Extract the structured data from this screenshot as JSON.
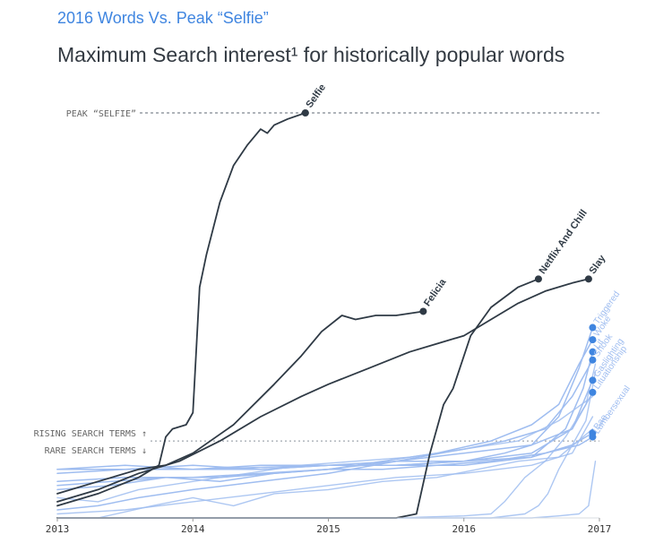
{
  "header": {
    "kicker": "2016 Words Vs. Peak “Selfie”",
    "title": "Maximum Search interest¹ for historically popular words"
  },
  "colors": {
    "dark": "#2f3a45",
    "blue": "#3f85e0",
    "light_blue": "#9fbdf0",
    "axis_text": "#333333",
    "reference_text": "#666666"
  },
  "chart_data": {
    "type": "line",
    "xlim": [
      2013,
      2017
    ],
    "ylim": [
      0,
      100
    ],
    "x_ticks": [
      {
        "value": 2013,
        "label": "2013"
      },
      {
        "value": 2014,
        "label": "2014"
      },
      {
        "value": 2015,
        "label": "2015"
      },
      {
        "value": 2016,
        "label": "2016"
      },
      {
        "value": 2017,
        "label": "2017"
      }
    ],
    "reference_lines": [
      {
        "name": "peak-selfie",
        "y": 100,
        "label": "PEAK “SELFIE”"
      },
      {
        "name": "rising-rare",
        "y": 19,
        "label_top": "RISING SEARCH TERMS ↑",
        "label_bottom": "RARE SEARCH TERMS ↓"
      }
    ],
    "series": [
      {
        "name": "Selfie",
        "style": "dark",
        "points": [
          [
            2013.0,
            3
          ],
          [
            2013.3,
            6
          ],
          [
            2013.6,
            10
          ],
          [
            2013.75,
            13
          ],
          [
            2013.8,
            20
          ],
          [
            2013.85,
            22
          ],
          [
            2013.95,
            23
          ],
          [
            2014.0,
            26
          ],
          [
            2014.05,
            57
          ],
          [
            2014.1,
            65
          ],
          [
            2014.2,
            78
          ],
          [
            2014.3,
            87
          ],
          [
            2014.4,
            92
          ],
          [
            2014.5,
            96
          ],
          [
            2014.55,
            95
          ],
          [
            2014.6,
            97
          ],
          [
            2014.7,
            98.5
          ],
          [
            2014.83,
            100
          ]
        ]
      },
      {
        "name": "Felicia",
        "style": "dark",
        "points": [
          [
            2013.0,
            6
          ],
          [
            2013.3,
            9
          ],
          [
            2013.6,
            12
          ],
          [
            2013.8,
            13
          ],
          [
            2014.0,
            16
          ],
          [
            2014.3,
            23
          ],
          [
            2014.6,
            33
          ],
          [
            2014.8,
            40
          ],
          [
            2014.95,
            46
          ],
          [
            2015.1,
            50
          ],
          [
            2015.2,
            49
          ],
          [
            2015.35,
            50
          ],
          [
            2015.5,
            50
          ],
          [
            2015.7,
            51
          ]
        ]
      },
      {
        "name": "Netflix And Chill",
        "style": "dark",
        "points": [
          [
            2013.0,
            0
          ],
          [
            2015.5,
            0
          ],
          [
            2015.65,
            1
          ],
          [
            2015.75,
            16
          ],
          [
            2015.85,
            28
          ],
          [
            2015.92,
            32
          ],
          [
            2016.05,
            45
          ],
          [
            2016.2,
            52
          ],
          [
            2016.4,
            57
          ],
          [
            2016.55,
            59
          ]
        ]
      },
      {
        "name": "Slay",
        "style": "dark",
        "points": [
          [
            2013.0,
            4
          ],
          [
            2013.3,
            7
          ],
          [
            2013.6,
            11
          ],
          [
            2013.9,
            14
          ],
          [
            2014.2,
            19
          ],
          [
            2014.5,
            25
          ],
          [
            2014.8,
            30
          ],
          [
            2015.0,
            33
          ],
          [
            2015.3,
            37
          ],
          [
            2015.6,
            41
          ],
          [
            2015.8,
            43
          ],
          [
            2016.0,
            45
          ],
          [
            2016.2,
            49
          ],
          [
            2016.4,
            53
          ],
          [
            2016.6,
            56
          ],
          [
            2016.8,
            58
          ],
          [
            2016.92,
            59
          ]
        ]
      },
      {
        "name": "Triggered",
        "style": "blue",
        "points": [
          [
            2013.0,
            12
          ],
          [
            2013.5,
            13
          ],
          [
            2014.0,
            12
          ],
          [
            2014.5,
            13
          ],
          [
            2015.0,
            13
          ],
          [
            2015.5,
            14
          ],
          [
            2016.0,
            14
          ],
          [
            2016.3,
            16
          ],
          [
            2016.5,
            18
          ],
          [
            2016.7,
            25
          ],
          [
            2016.85,
            37
          ],
          [
            2016.95,
            47
          ]
        ]
      },
      {
        "name": "Woke",
        "style": "blue",
        "points": [
          [
            2013.0,
            7
          ],
          [
            2013.4,
            8
          ],
          [
            2013.8,
            10
          ],
          [
            2014.2,
            9
          ],
          [
            2014.6,
            11
          ],
          [
            2015.0,
            12
          ],
          [
            2015.4,
            14
          ],
          [
            2015.8,
            16
          ],
          [
            2016.2,
            19
          ],
          [
            2016.5,
            23
          ],
          [
            2016.7,
            28
          ],
          [
            2016.85,
            38
          ],
          [
            2016.95,
            44
          ]
        ]
      },
      {
        "name": "Lit",
        "style": "blue",
        "points": [
          [
            2013.0,
            12
          ],
          [
            2014.0,
            12
          ],
          [
            2015.0,
            13
          ],
          [
            2015.5,
            13
          ],
          [
            2016.0,
            13
          ],
          [
            2016.5,
            15
          ],
          [
            2016.75,
            22
          ],
          [
            2016.88,
            32
          ],
          [
            2016.95,
            41
          ]
        ]
      },
      {
        "name": "Shook",
        "style": "blue",
        "points": [
          [
            2013.0,
            9
          ],
          [
            2013.5,
            10
          ],
          [
            2014.0,
            10
          ],
          [
            2014.5,
            11
          ],
          [
            2015.0,
            12
          ],
          [
            2015.5,
            14
          ],
          [
            2016.0,
            17
          ],
          [
            2016.3,
            19
          ],
          [
            2016.6,
            22
          ],
          [
            2016.8,
            30
          ],
          [
            2016.95,
            39
          ]
        ]
      },
      {
        "name": "Gaslighting",
        "style": "blue",
        "points": [
          [
            2013.0,
            12
          ],
          [
            2013.5,
            12
          ],
          [
            2014.0,
            13
          ],
          [
            2014.5,
            12
          ],
          [
            2015.0,
            13
          ],
          [
            2015.5,
            13
          ],
          [
            2016.0,
            14
          ],
          [
            2016.5,
            16
          ],
          [
            2016.8,
            22
          ],
          [
            2016.95,
            34
          ]
        ]
      },
      {
        "name": "Lituationship",
        "style": "blue",
        "points": [
          [
            2013.0,
            2
          ],
          [
            2013.3,
            3
          ],
          [
            2013.6,
            5
          ],
          [
            2014.0,
            7
          ],
          [
            2014.5,
            9
          ],
          [
            2015.0,
            11
          ],
          [
            2015.5,
            14
          ],
          [
            2016.0,
            16
          ],
          [
            2016.5,
            18
          ],
          [
            2016.8,
            22
          ],
          [
            2016.95,
            31
          ]
        ]
      },
      {
        "name": "Bae",
        "style": "blue",
        "points": [
          [
            2013.0,
            11
          ],
          [
            2013.5,
            12
          ],
          [
            2014.0,
            12
          ],
          [
            2014.5,
            12
          ],
          [
            2015.0,
            13
          ],
          [
            2015.5,
            13
          ],
          [
            2016.0,
            14
          ],
          [
            2016.5,
            15
          ],
          [
            2016.8,
            18
          ],
          [
            2016.95,
            21
          ]
        ]
      },
      {
        "name": "Lumbersexual",
        "style": "blue",
        "points": [
          [
            2013.0,
            8
          ],
          [
            2013.4,
            9
          ],
          [
            2013.8,
            10
          ],
          [
            2014.2,
            10
          ],
          [
            2014.6,
            11
          ],
          [
            2015.0,
            12
          ],
          [
            2015.4,
            12
          ],
          [
            2015.8,
            13
          ],
          [
            2016.2,
            14
          ],
          [
            2016.6,
            16
          ],
          [
            2016.85,
            18
          ],
          [
            2016.95,
            20
          ]
        ]
      },
      {
        "name": "trend-a",
        "style": "light",
        "points": [
          [
            2013.0,
            5
          ],
          [
            2013.3,
            4
          ],
          [
            2013.6,
            7
          ],
          [
            2014.0,
            9
          ],
          [
            2014.4,
            11
          ],
          [
            2014.8,
            13
          ],
          [
            2015.2,
            14
          ],
          [
            2015.6,
            15
          ],
          [
            2016.0,
            17
          ],
          [
            2016.4,
            19
          ],
          [
            2016.7,
            24
          ],
          [
            2016.95,
            30
          ]
        ]
      },
      {
        "name": "trend-b",
        "style": "light",
        "points": [
          [
            2013.0,
            0
          ],
          [
            2014.0,
            0
          ],
          [
            2015.0,
            0
          ],
          [
            2015.5,
            0
          ],
          [
            2016.0,
            0.5
          ],
          [
            2016.2,
            1
          ],
          [
            2016.3,
            4
          ],
          [
            2016.45,
            10
          ],
          [
            2016.6,
            14
          ],
          [
            2016.75,
            20
          ],
          [
            2016.9,
            28
          ],
          [
            2016.97,
            38
          ]
        ]
      },
      {
        "name": "trend-c",
        "style": "light",
        "points": [
          [
            2013.0,
            0
          ],
          [
            2015.8,
            0
          ],
          [
            2016.2,
            0
          ],
          [
            2016.45,
            1
          ],
          [
            2016.55,
            3
          ],
          [
            2016.62,
            6
          ],
          [
            2016.7,
            12
          ],
          [
            2016.8,
            18
          ],
          [
            2016.9,
            24
          ],
          [
            2016.97,
            36
          ]
        ]
      },
      {
        "name": "trend-d",
        "style": "light",
        "points": [
          [
            2013.3,
            0
          ],
          [
            2013.7,
            3
          ],
          [
            2014.0,
            5
          ],
          [
            2014.3,
            3
          ],
          [
            2014.6,
            6
          ],
          [
            2015.0,
            7
          ],
          [
            2015.4,
            9
          ],
          [
            2015.8,
            10
          ],
          [
            2016.1,
            12
          ],
          [
            2016.4,
            14
          ],
          [
            2016.7,
            15
          ],
          [
            2016.95,
            22
          ]
        ]
      },
      {
        "name": "trend-e",
        "style": "light",
        "points": [
          [
            2013.0,
            0
          ],
          [
            2016.0,
            0
          ],
          [
            2016.5,
            0
          ],
          [
            2016.7,
            0.5
          ],
          [
            2016.85,
            1
          ],
          [
            2016.92,
            3
          ],
          [
            2016.97,
            14
          ]
        ]
      },
      {
        "name": "trend-f",
        "style": "light",
        "points": [
          [
            2013.0,
            1
          ],
          [
            2013.5,
            2
          ],
          [
            2014.0,
            4
          ],
          [
            2014.5,
            6
          ],
          [
            2015.0,
            8
          ],
          [
            2015.5,
            10
          ],
          [
            2016.0,
            11
          ],
          [
            2016.5,
            13
          ],
          [
            2016.8,
            16
          ],
          [
            2016.95,
            25
          ]
        ]
      }
    ]
  }
}
